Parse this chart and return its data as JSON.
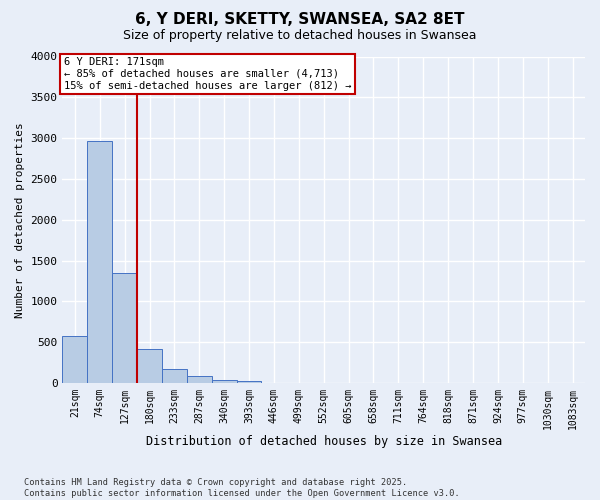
{
  "title": "6, Y DERI, SKETTY, SWANSEA, SA2 8ET",
  "subtitle": "Size of property relative to detached houses in Swansea",
  "xlabel": "Distribution of detached houses by size in Swansea",
  "ylabel": "Number of detached properties",
  "footnote": "Contains HM Land Registry data © Crown copyright and database right 2025.\nContains public sector information licensed under the Open Government Licence v3.0.",
  "categories": [
    "21sqm",
    "74sqm",
    "127sqm",
    "180sqm",
    "233sqm",
    "287sqm",
    "340sqm",
    "393sqm",
    "446sqm",
    "499sqm",
    "552sqm",
    "605sqm",
    "658sqm",
    "711sqm",
    "764sqm",
    "818sqm",
    "871sqm",
    "924sqm",
    "977sqm",
    "1030sqm",
    "1083sqm"
  ],
  "values": [
    580,
    2970,
    1350,
    420,
    175,
    85,
    40,
    25,
    5,
    0,
    0,
    0,
    0,
    0,
    0,
    0,
    0,
    0,
    0,
    0,
    0
  ],
  "bar_color": "#b8cce4",
  "bar_edge_color": "#4472c4",
  "background_color": "#e8eef8",
  "grid_color": "#ffffff",
  "vline_x": 2.5,
  "vline_color": "#c00000",
  "annotation_text": "6 Y DERI: 171sqm\n← 85% of detached houses are smaller (4,713)\n15% of semi-detached houses are larger (812) →",
  "annotation_box_color": "#c00000",
  "ylim": [
    0,
    4000
  ],
  "yticks": [
    0,
    500,
    1000,
    1500,
    2000,
    2500,
    3000,
    3500,
    4000
  ]
}
